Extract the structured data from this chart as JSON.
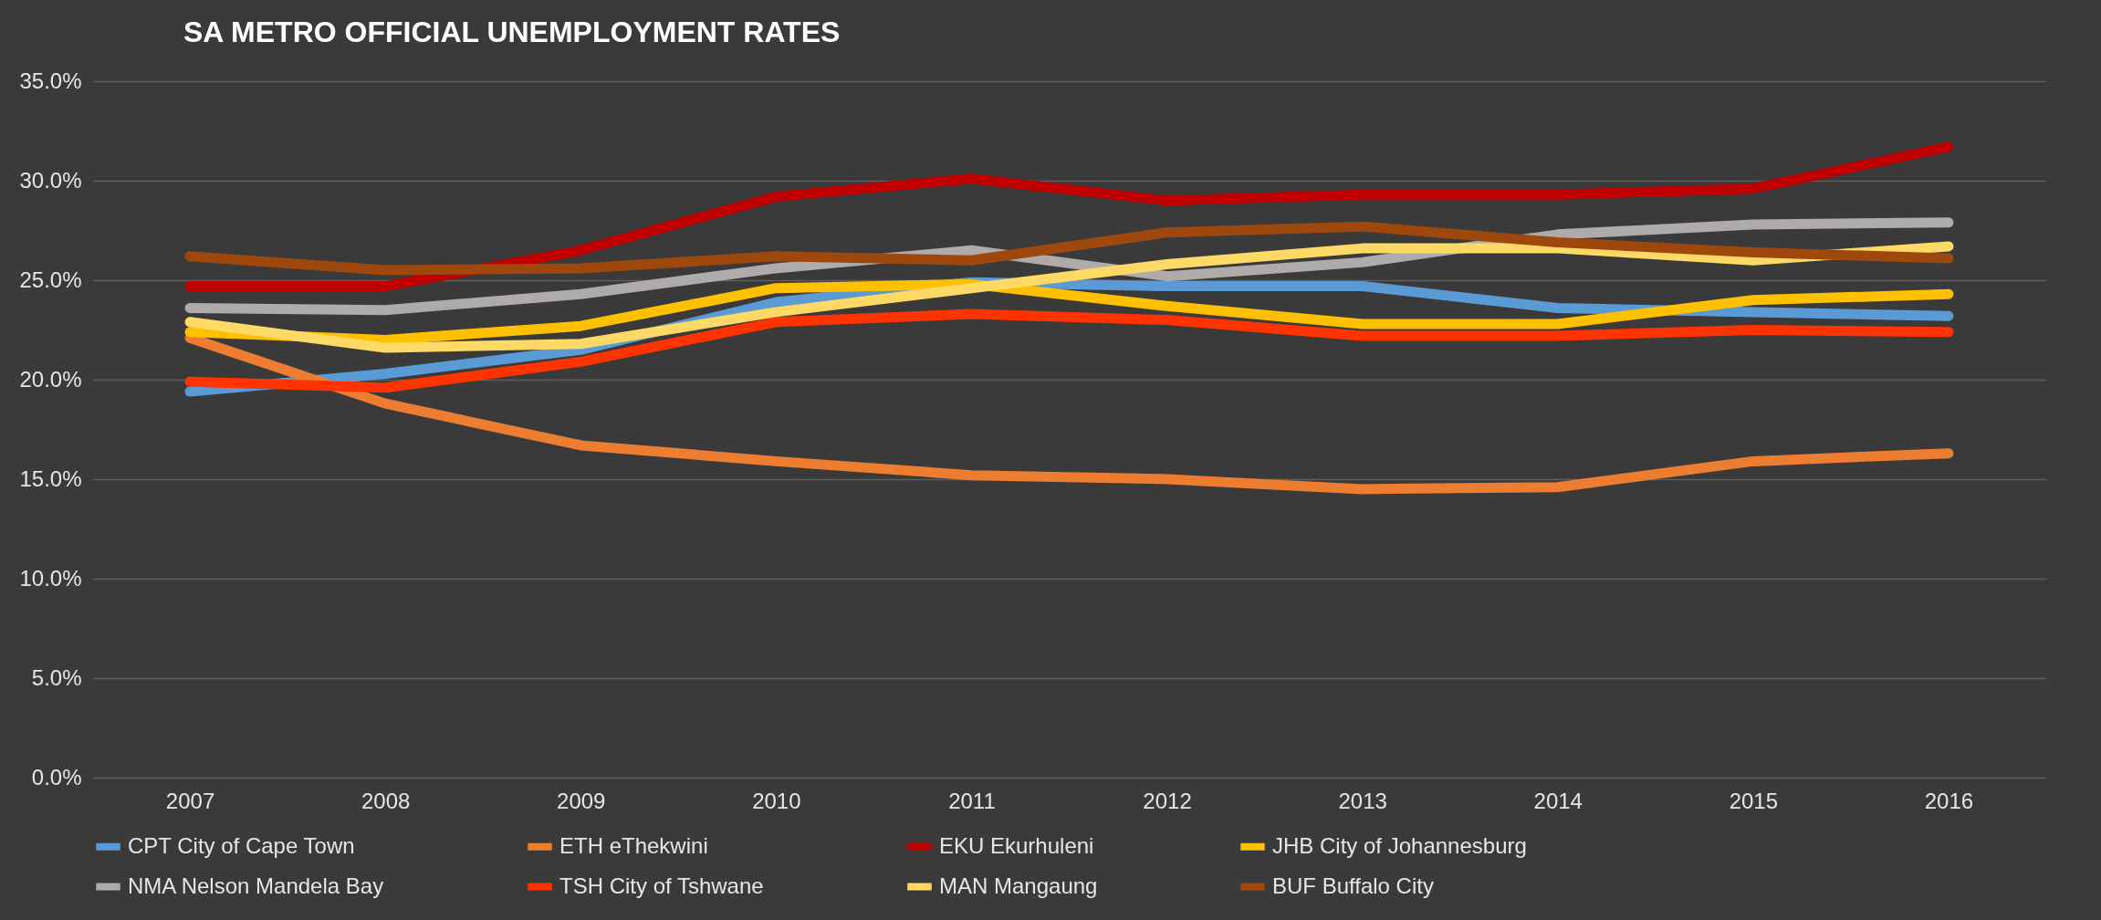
{
  "chart_data": {
    "type": "line",
    "title": "SA METRO OFFICIAL UNEMPLOYMENT RATES",
    "categories": [
      "2007",
      "2008",
      "2009",
      "2010",
      "2011",
      "2012",
      "2013",
      "2014",
      "2015",
      "2016"
    ],
    "series": [
      {
        "name": "CPT City of Cape Town",
        "color": "#5b9bd5",
        "values": [
          19.4,
          20.3,
          21.5,
          23.9,
          24.9,
          24.7,
          24.7,
          23.6,
          23.4,
          23.2
        ]
      },
      {
        "name": "ETH eThekwini",
        "color": "#ed7d31",
        "values": [
          22.1,
          18.8,
          16.7,
          15.9,
          15.2,
          15.0,
          14.5,
          14.6,
          15.9,
          16.3
        ]
      },
      {
        "name": "EKU Ekurhuleni",
        "color": "#c00000",
        "values": [
          24.7,
          24.7,
          26.5,
          29.2,
          30.1,
          29.0,
          29.3,
          29.3,
          29.6,
          31.7
        ]
      },
      {
        "name": "JHB City of Johannesburg",
        "color": "#ffc000",
        "values": [
          22.4,
          22.0,
          22.7,
          24.6,
          24.8,
          23.7,
          22.8,
          22.8,
          24.0,
          24.3
        ]
      },
      {
        "name": "NMA Nelson Mandela Bay",
        "color": "#afabab",
        "values": [
          23.6,
          23.5,
          24.3,
          25.6,
          26.5,
          25.2,
          25.9,
          27.3,
          27.8,
          27.9
        ]
      },
      {
        "name": "TSH City of Tshwane",
        "color": "#ff3300",
        "values": [
          19.9,
          19.6,
          20.9,
          22.9,
          23.3,
          23.0,
          22.2,
          22.2,
          22.5,
          22.4
        ]
      },
      {
        "name": "MAN Mangaung",
        "color": "#ffd966",
        "values": [
          22.9,
          21.6,
          21.8,
          23.4,
          24.6,
          25.8,
          26.6,
          26.6,
          26.0,
          26.7
        ]
      },
      {
        "name": "BUF Buffalo City",
        "color": "#9e480e",
        "values": [
          26.2,
          25.5,
          25.6,
          26.2,
          26.0,
          27.4,
          27.7,
          26.9,
          26.4,
          26.1
        ]
      }
    ],
    "ylim": [
      0,
      35
    ],
    "yticks": [
      {
        "value": 0,
        "label": "0.0%"
      },
      {
        "value": 5,
        "label": "5.0%"
      },
      {
        "value": 10,
        "label": "10.0%"
      },
      {
        "value": 15,
        "label": "15.0%"
      },
      {
        "value": 20,
        "label": "20.0%"
      },
      {
        "value": 25,
        "label": "25.0%"
      },
      {
        "value": 30,
        "label": "30.0%"
      },
      {
        "value": 35,
        "label": "35.0%"
      }
    ],
    "grid": "y",
    "legend": "bottom",
    "marker": "none",
    "line_style": "solid"
  }
}
